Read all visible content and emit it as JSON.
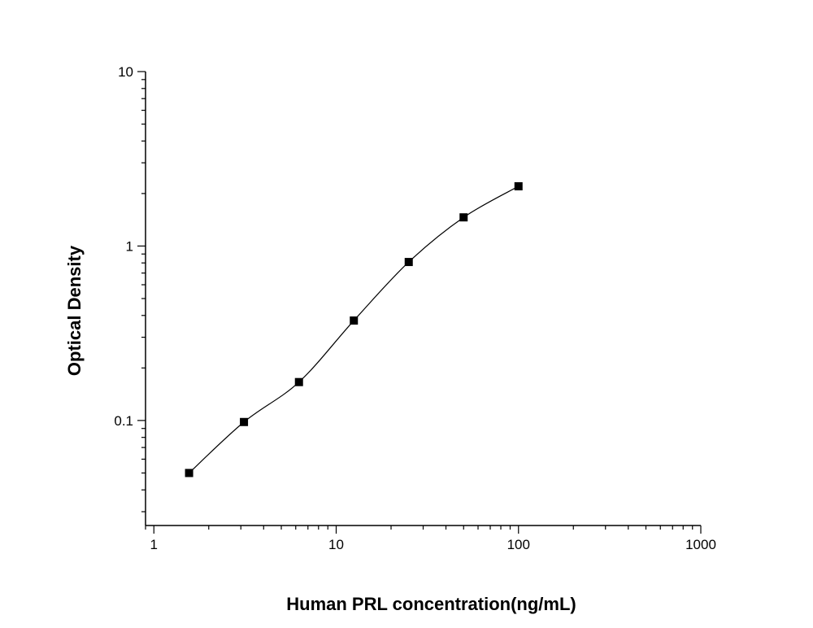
{
  "chart_data": {
    "type": "scatter",
    "title": "",
    "xlabel": "Human PRL concentration(ng/mL)",
    "ylabel": "Optical Density",
    "x_scale": "log",
    "y_scale": "log",
    "xlim": [
      0.9,
      1000
    ],
    "ylim": [
      0.025,
      10
    ],
    "x_ticks": [
      {
        "value": 1,
        "label": "1"
      },
      {
        "value": 10,
        "label": "10"
      },
      {
        "value": 100,
        "label": "100"
      },
      {
        "value": 1000,
        "label": "1000"
      }
    ],
    "y_ticks": [
      {
        "value": 0.1,
        "label": "0.1"
      },
      {
        "value": 1,
        "label": "1"
      },
      {
        "value": 10,
        "label": "10"
      }
    ],
    "grid": false,
    "legend": "none",
    "series": [
      {
        "marker": "square",
        "color": "#000000",
        "fit_line": "smooth curve",
        "points": [
          {
            "x": 1.56,
            "y": 0.05
          },
          {
            "x": 3.12,
            "y": 0.098
          },
          {
            "x": 6.25,
            "y": 0.166
          },
          {
            "x": 12.5,
            "y": 0.374
          },
          {
            "x": 25,
            "y": 0.81
          },
          {
            "x": 50,
            "y": 1.46
          },
          {
            "x": 100,
            "y": 2.2
          }
        ]
      }
    ]
  }
}
